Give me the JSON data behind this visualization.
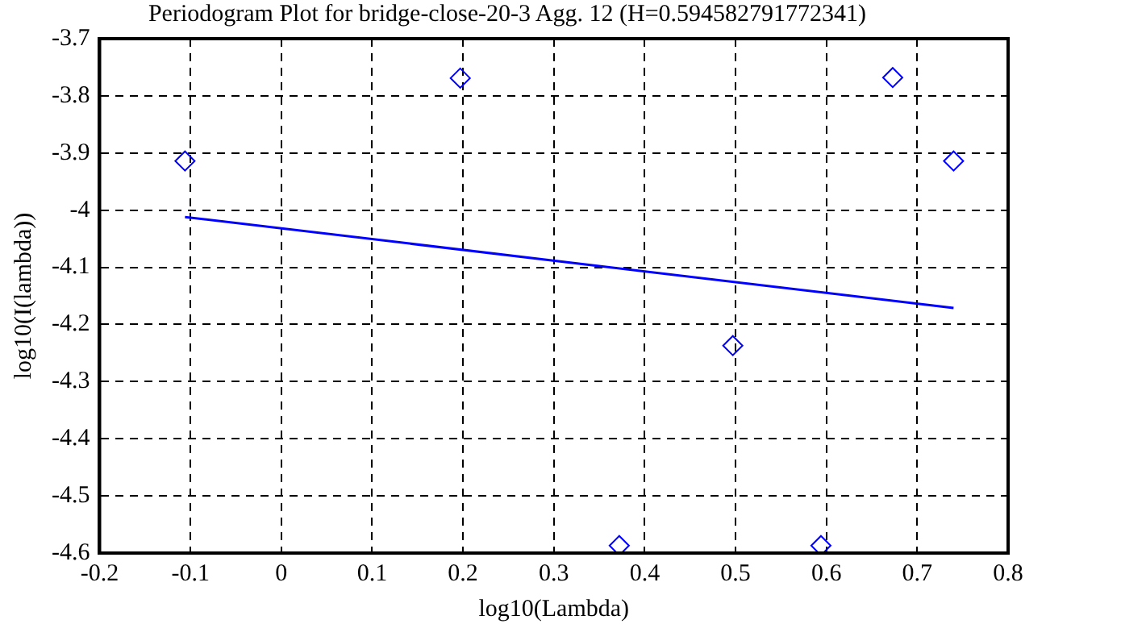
{
  "chart_data": {
    "type": "scatter",
    "title": "Periodogram Plot for bridge-close-20-3 Agg. 12 (H=0.594582791772341)",
    "xlabel": "log10(Lambda)",
    "ylabel": "log10(I(lambda))",
    "xlim": [
      -0.2,
      0.8
    ],
    "xticks": [
      -0.2,
      -0.1,
      0,
      0.1,
      0.2,
      0.3,
      0.4,
      0.5,
      0.6,
      0.7,
      0.8
    ],
    "ylim": [
      -4.6,
      -3.7
    ],
    "yticks": [
      -4.6,
      -4.5,
      -4.4,
      -4.3,
      -4.2,
      -4.1,
      -4,
      -3.9,
      -3.8,
      -3.7
    ],
    "grid": true,
    "legend": false,
    "series": [
      {
        "color": "#0000ff",
        "marker": "diamond",
        "x": [
          -0.106,
          0.197,
          0.372,
          0.497,
          0.594,
          0.673,
          0.74
        ],
        "values": [
          -3.914,
          -3.769,
          -4.587,
          -4.237,
          -4.587,
          -3.768,
          -3.914
        ]
      },
      {
        "type": "line",
        "color": "#0000ff",
        "marker": "none",
        "line_style": "solid",
        "x": [
          -0.106,
          0.74
        ],
        "values": [
          -4.012,
          -4.171
        ]
      }
    ]
  }
}
